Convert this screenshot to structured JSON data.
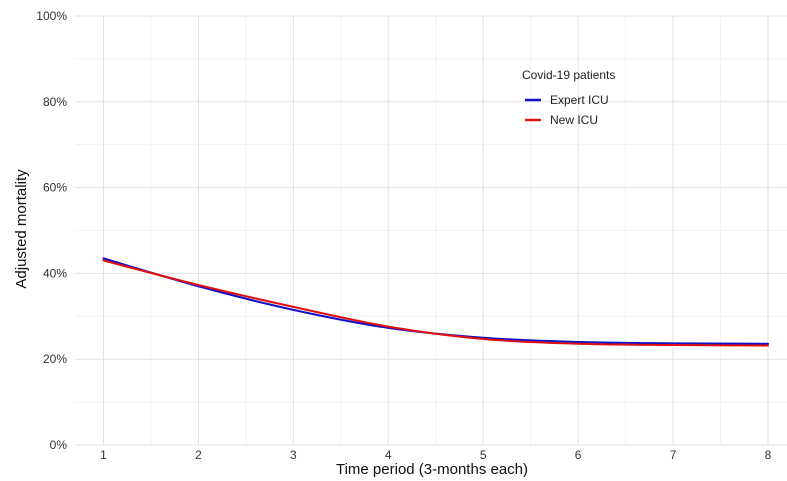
{
  "chart_data": {
    "type": "line",
    "xlabel": "Time period (3-months each)",
    "ylabel": "Adjusted mortality",
    "x": [
      1,
      2,
      3,
      4,
      5,
      6,
      7,
      8
    ],
    "xticks": [
      "1",
      "2",
      "3",
      "4",
      "5",
      "6",
      "7",
      "8"
    ],
    "xlim": [
      0.7,
      8.2
    ],
    "ylim": [
      0,
      100
    ],
    "yticks": [
      0,
      20,
      40,
      60,
      80,
      100
    ],
    "ytick_labels": [
      "0%",
      "20%",
      "40%",
      "60%",
      "80%",
      "100%"
    ],
    "grid": true,
    "legend": {
      "title": "Covid-19 patients",
      "placement": "top-right"
    },
    "series": [
      {
        "name": "Expert ICU",
        "color": "#1010c8",
        "values": [
          43.5,
          37.0,
          31.5,
          27.3,
          25.0,
          24.0,
          23.7,
          23.6
        ]
      },
      {
        "name": "New ICU",
        "color": "#e01010",
        "values": [
          43.0,
          37.3,
          32.2,
          27.6,
          24.7,
          23.6,
          23.3,
          23.2
        ]
      }
    ]
  }
}
